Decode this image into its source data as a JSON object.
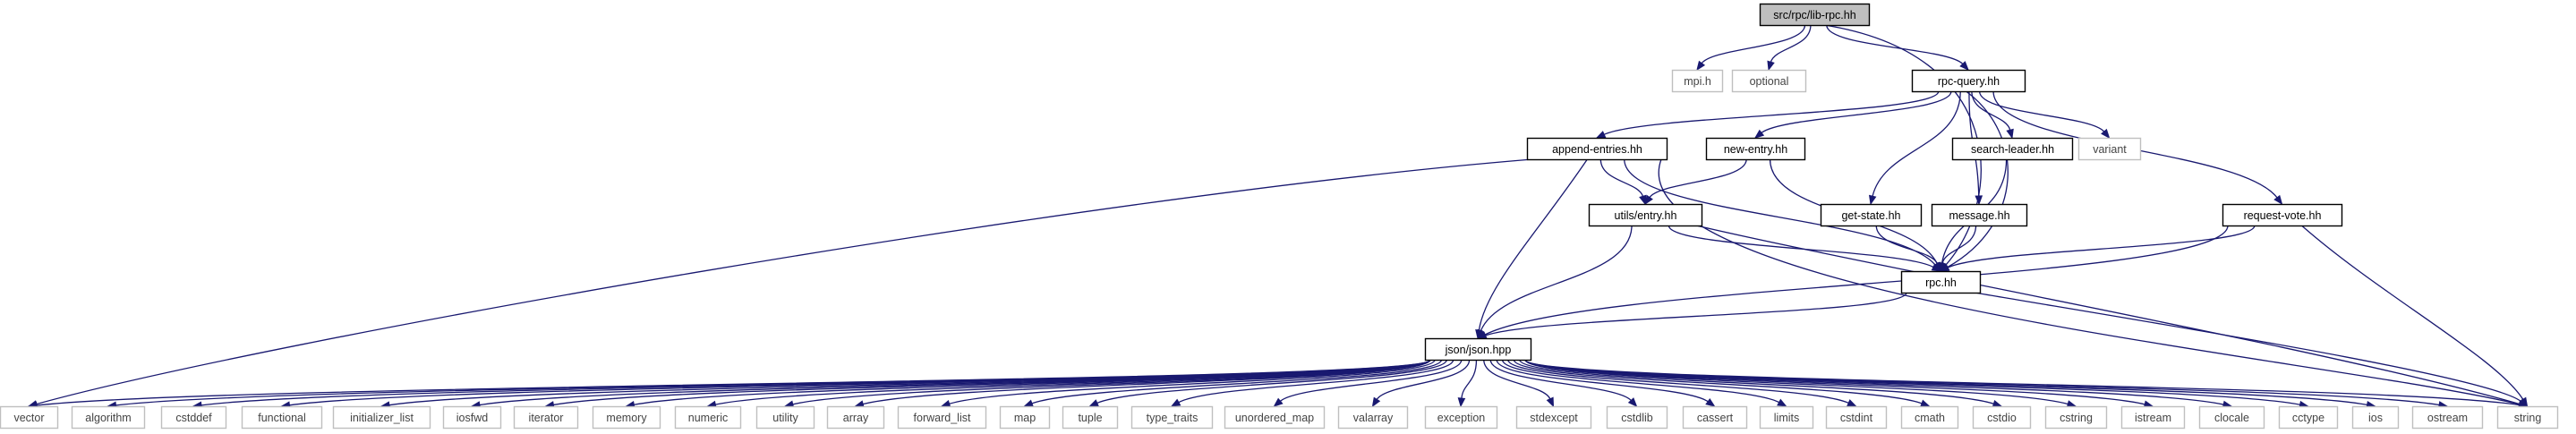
{
  "diagram": {
    "type": "include-dependency-graph",
    "colors": {
      "edge": "#191970",
      "root_fill": "#bfbfbf",
      "root_stroke": "#000000",
      "internal_fill": "#ffffff",
      "internal_stroke": "#000000",
      "external_stroke": "#bfbfbf",
      "text": "#000000"
    },
    "nodes": [
      {
        "id": "lib_rpc",
        "label": "src/rpc/lib-rpc.hh",
        "kind": "root"
      },
      {
        "id": "mpi",
        "label": "mpi.h",
        "kind": "external"
      },
      {
        "id": "optional",
        "label": "optional",
        "kind": "external"
      },
      {
        "id": "rpc_query",
        "label": "rpc-query.hh",
        "kind": "internal"
      },
      {
        "id": "append_entries",
        "label": "append-entries.hh",
        "kind": "internal"
      },
      {
        "id": "new_entry",
        "label": "new-entry.hh",
        "kind": "internal"
      },
      {
        "id": "search_leader",
        "label": "search-leader.hh",
        "kind": "internal"
      },
      {
        "id": "variant",
        "label": "variant",
        "kind": "external"
      },
      {
        "id": "utils_entry",
        "label": "utils/entry.hh",
        "kind": "internal"
      },
      {
        "id": "get_state",
        "label": "get-state.hh",
        "kind": "internal"
      },
      {
        "id": "message",
        "label": "message.hh",
        "kind": "internal"
      },
      {
        "id": "request_vote",
        "label": "request-vote.hh",
        "kind": "internal"
      },
      {
        "id": "rpc",
        "label": "rpc.hh",
        "kind": "internal"
      },
      {
        "id": "json",
        "label": "json/json.hpp",
        "kind": "internal"
      },
      {
        "id": "vector",
        "label": "vector",
        "kind": "external"
      },
      {
        "id": "algorithm",
        "label": "algorithm",
        "kind": "external"
      },
      {
        "id": "cstddef",
        "label": "cstddef",
        "kind": "external"
      },
      {
        "id": "functional",
        "label": "functional",
        "kind": "external"
      },
      {
        "id": "initializer_list",
        "label": "initializer_list",
        "kind": "external"
      },
      {
        "id": "iosfwd",
        "label": "iosfwd",
        "kind": "external"
      },
      {
        "id": "iterator",
        "label": "iterator",
        "kind": "external"
      },
      {
        "id": "memory",
        "label": "memory",
        "kind": "external"
      },
      {
        "id": "numeric",
        "label": "numeric",
        "kind": "external"
      },
      {
        "id": "utility",
        "label": "utility",
        "kind": "external"
      },
      {
        "id": "array",
        "label": "array",
        "kind": "external"
      },
      {
        "id": "forward_list",
        "label": "forward_list",
        "kind": "external"
      },
      {
        "id": "map",
        "label": "map",
        "kind": "external"
      },
      {
        "id": "tuple",
        "label": "tuple",
        "kind": "external"
      },
      {
        "id": "type_traits",
        "label": "type_traits",
        "kind": "external"
      },
      {
        "id": "unordered_map",
        "label": "unordered_map",
        "kind": "external"
      },
      {
        "id": "valarray",
        "label": "valarray",
        "kind": "external"
      },
      {
        "id": "exception",
        "label": "exception",
        "kind": "external"
      },
      {
        "id": "stdexcept",
        "label": "stdexcept",
        "kind": "external"
      },
      {
        "id": "cstdlib",
        "label": "cstdlib",
        "kind": "external"
      },
      {
        "id": "cassert",
        "label": "cassert",
        "kind": "external"
      },
      {
        "id": "limits",
        "label": "limits",
        "kind": "external"
      },
      {
        "id": "cstdint",
        "label": "cstdint",
        "kind": "external"
      },
      {
        "id": "cmath",
        "label": "cmath",
        "kind": "external"
      },
      {
        "id": "cstdio",
        "label": "cstdio",
        "kind": "external"
      },
      {
        "id": "cstring",
        "label": "cstring",
        "kind": "external"
      },
      {
        "id": "istream",
        "label": "istream",
        "kind": "external"
      },
      {
        "id": "clocale",
        "label": "clocale",
        "kind": "external"
      },
      {
        "id": "cctype",
        "label": "cctype",
        "kind": "external"
      },
      {
        "id": "ios",
        "label": "ios",
        "kind": "external"
      },
      {
        "id": "ostream",
        "label": "ostream",
        "kind": "external"
      },
      {
        "id": "string",
        "label": "string",
        "kind": "external"
      }
    ],
    "edges": [
      {
        "from": "lib_rpc",
        "to": "mpi"
      },
      {
        "from": "lib_rpc",
        "to": "optional"
      },
      {
        "from": "lib_rpc",
        "to": "rpc_query"
      },
      {
        "from": "lib_rpc",
        "to": "rpc"
      },
      {
        "from": "rpc_query",
        "to": "append_entries"
      },
      {
        "from": "rpc_query",
        "to": "new_entry"
      },
      {
        "from": "rpc_query",
        "to": "search_leader"
      },
      {
        "from": "rpc_query",
        "to": "variant"
      },
      {
        "from": "rpc_query",
        "to": "get_state"
      },
      {
        "from": "rpc_query",
        "to": "message"
      },
      {
        "from": "rpc_query",
        "to": "request_vote"
      },
      {
        "from": "rpc_query",
        "to": "rpc"
      },
      {
        "from": "append_entries",
        "to": "utils_entry"
      },
      {
        "from": "append_entries",
        "to": "rpc"
      },
      {
        "from": "append_entries",
        "to": "json"
      },
      {
        "from": "append_entries",
        "to": "vector"
      },
      {
        "from": "append_entries",
        "to": "string"
      },
      {
        "from": "new_entry",
        "to": "utils_entry"
      },
      {
        "from": "new_entry",
        "to": "rpc"
      },
      {
        "from": "search_leader",
        "to": "rpc"
      },
      {
        "from": "get_state",
        "to": "rpc"
      },
      {
        "from": "message",
        "to": "rpc"
      },
      {
        "from": "utils_entry",
        "to": "rpc"
      },
      {
        "from": "utils_entry",
        "to": "json"
      },
      {
        "from": "utils_entry",
        "to": "string"
      },
      {
        "from": "request_vote",
        "to": "rpc"
      },
      {
        "from": "request_vote",
        "to": "json"
      },
      {
        "from": "request_vote",
        "to": "string"
      },
      {
        "from": "rpc",
        "to": "json"
      },
      {
        "from": "rpc",
        "to": "string"
      },
      {
        "from": "json",
        "to": "vector"
      },
      {
        "from": "json",
        "to": "algorithm"
      },
      {
        "from": "json",
        "to": "cstddef"
      },
      {
        "from": "json",
        "to": "functional"
      },
      {
        "from": "json",
        "to": "initializer_list"
      },
      {
        "from": "json",
        "to": "iosfwd"
      },
      {
        "from": "json",
        "to": "iterator"
      },
      {
        "from": "json",
        "to": "memory"
      },
      {
        "from": "json",
        "to": "numeric"
      },
      {
        "from": "json",
        "to": "utility"
      },
      {
        "from": "json",
        "to": "array"
      },
      {
        "from": "json",
        "to": "forward_list"
      },
      {
        "from": "json",
        "to": "map"
      },
      {
        "from": "json",
        "to": "tuple"
      },
      {
        "from": "json",
        "to": "type_traits"
      },
      {
        "from": "json",
        "to": "unordered_map"
      },
      {
        "from": "json",
        "to": "valarray"
      },
      {
        "from": "json",
        "to": "exception"
      },
      {
        "from": "json",
        "to": "stdexcept"
      },
      {
        "from": "json",
        "to": "cstdlib"
      },
      {
        "from": "json",
        "to": "cassert"
      },
      {
        "from": "json",
        "to": "limits"
      },
      {
        "from": "json",
        "to": "cstdint"
      },
      {
        "from": "json",
        "to": "cmath"
      },
      {
        "from": "json",
        "to": "cstdio"
      },
      {
        "from": "json",
        "to": "cstring"
      },
      {
        "from": "json",
        "to": "istream"
      },
      {
        "from": "json",
        "to": "clocale"
      },
      {
        "from": "json",
        "to": "cctype"
      },
      {
        "from": "json",
        "to": "ios"
      },
      {
        "from": "json",
        "to": "ostream"
      },
      {
        "from": "json",
        "to": "string"
      }
    ]
  }
}
